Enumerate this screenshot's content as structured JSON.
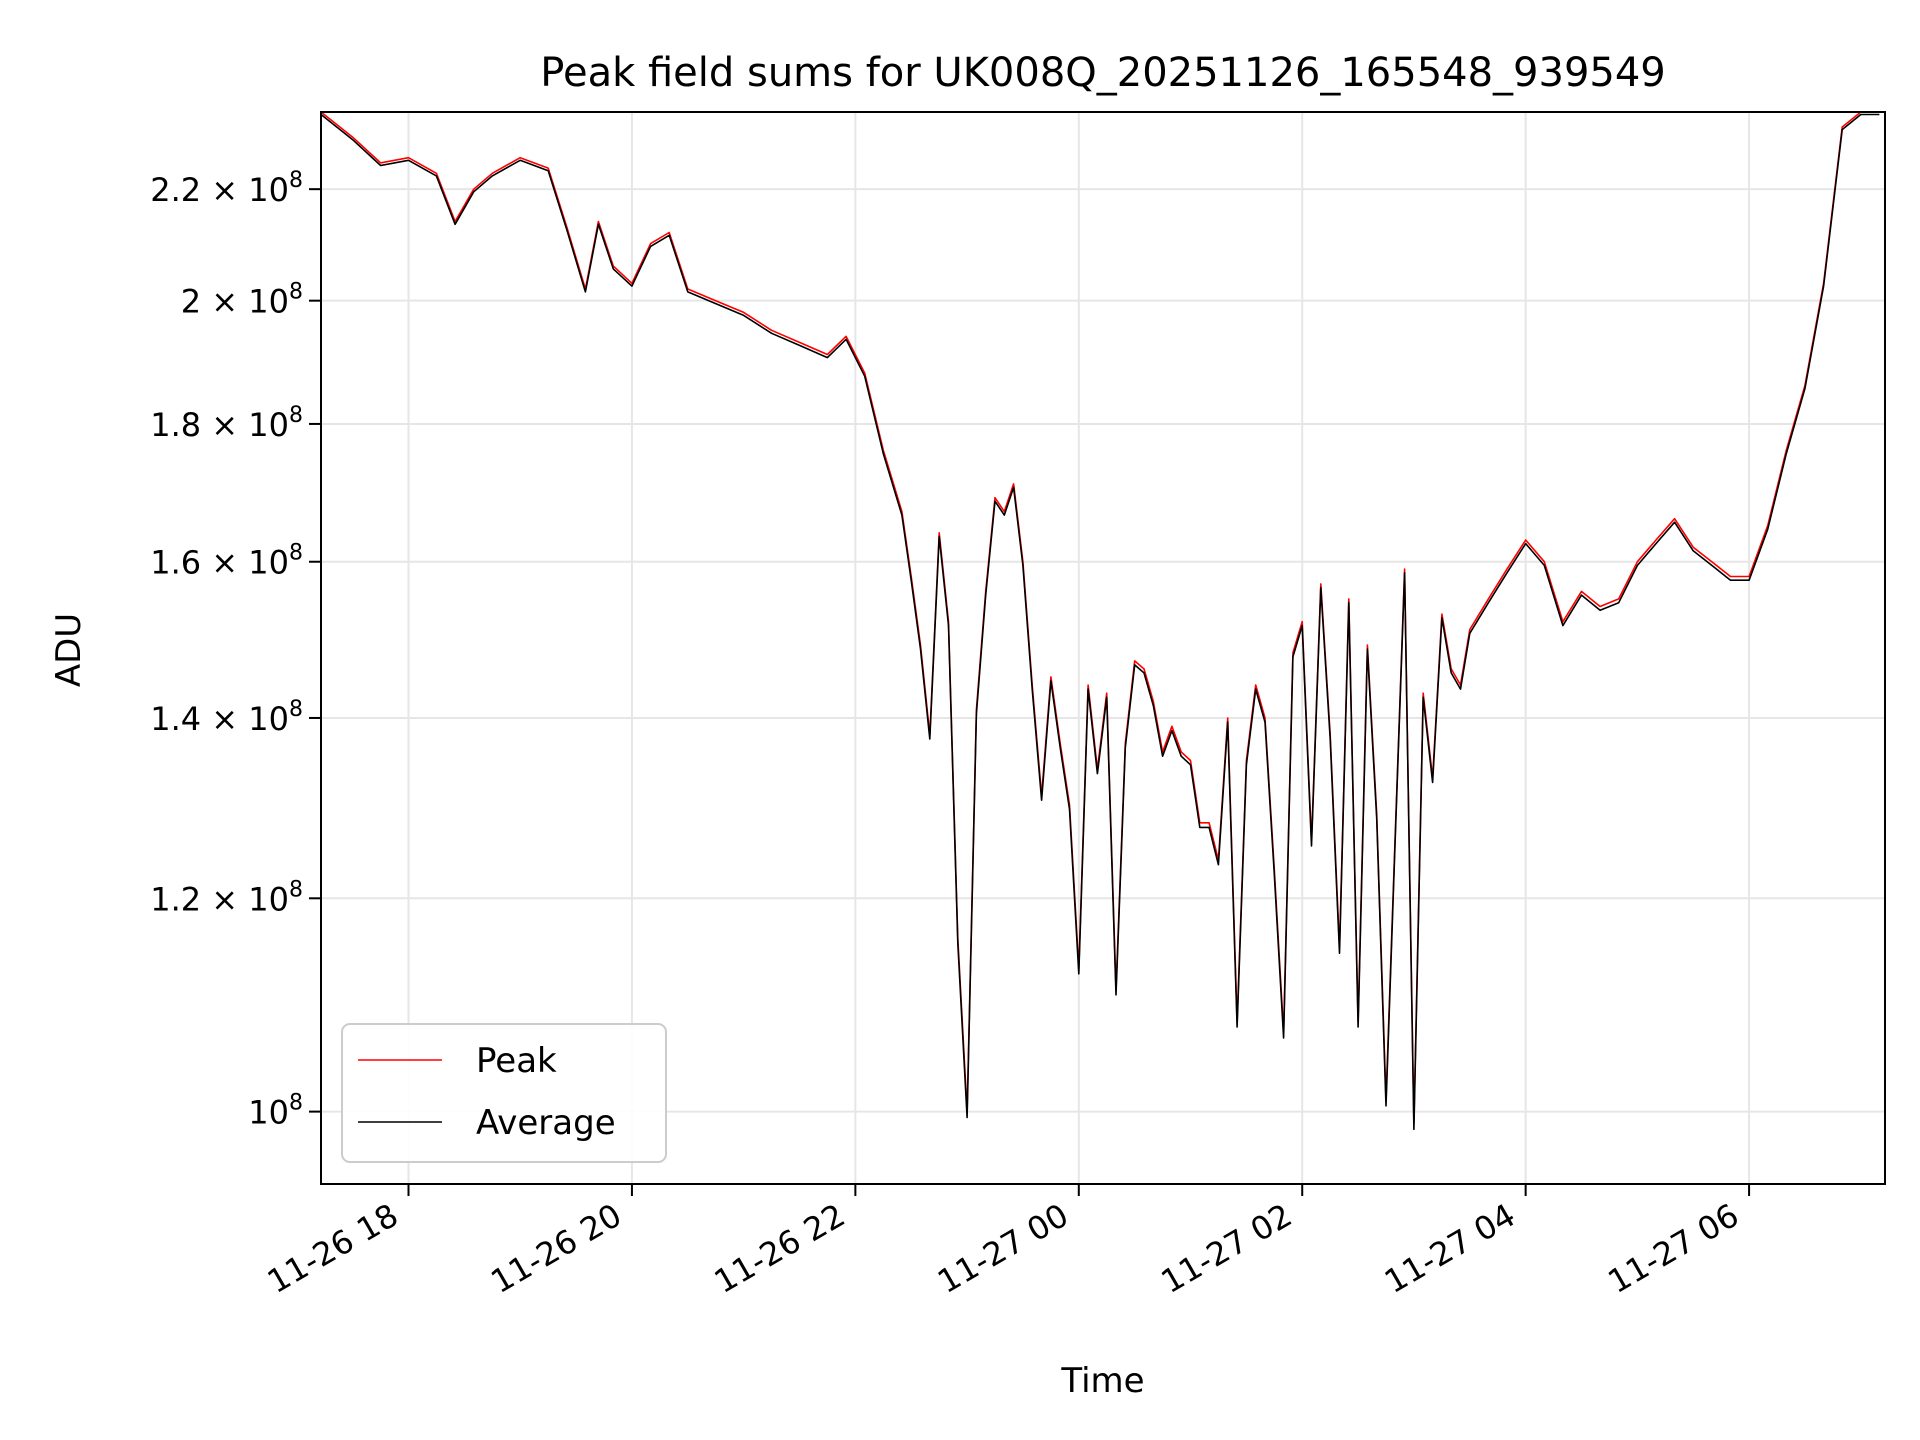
{
  "chart_data": {
    "type": "line",
    "title": "Peak field sums for UK008Q_20251126_165548_939549",
    "xlabel": "Time",
    "ylabel": "ADU",
    "y_scale": "log",
    "grid": true,
    "legend_position": "lower-left",
    "xlim": [
      "2025-11-26 17:13",
      "2025-11-27 07:13"
    ],
    "ylim": [
      94000000,
      235000000
    ],
    "x_ticks": [
      {
        "value": "2025-11-26 18:00",
        "label": "11-26 18"
      },
      {
        "value": "2025-11-26 20:00",
        "label": "11-26 20"
      },
      {
        "value": "2025-11-26 22:00",
        "label": "11-26 22"
      },
      {
        "value": "2025-11-27 00:00",
        "label": "11-27 00"
      },
      {
        "value": "2025-11-27 02:00",
        "label": "11-27 02"
      },
      {
        "value": "2025-11-27 04:00",
        "label": "11-27 04"
      },
      {
        "value": "2025-11-27 06:00",
        "label": "11-27 06"
      }
    ],
    "y_ticks": [
      {
        "value": 100000000,
        "mantissa": "",
        "exponent": "8"
      },
      {
        "value": 120000000,
        "mantissa": "1.2",
        "exponent": "8"
      },
      {
        "value": 140000000,
        "mantissa": "1.4",
        "exponent": "8"
      },
      {
        "value": 160000000,
        "mantissa": "1.6",
        "exponent": "8"
      },
      {
        "value": 180000000,
        "mantissa": "1.8",
        "exponent": "8"
      },
      {
        "value": 200000000,
        "mantissa": "2",
        "exponent": "8"
      },
      {
        "value": 220000000,
        "mantissa": "2.2",
        "exponent": "8"
      }
    ],
    "series": [
      {
        "name": "Peak",
        "color": "#ff0000",
        "x": [
          "2025-11-26 17:13",
          "2025-11-26 17:30",
          "2025-11-26 17:45",
          "2025-11-26 18:00",
          "2025-11-26 18:15",
          "2025-11-26 18:25",
          "2025-11-26 18:35",
          "2025-11-26 18:45",
          "2025-11-26 19:00",
          "2025-11-26 19:15",
          "2025-11-26 19:25",
          "2025-11-26 19:35",
          "2025-11-26 19:42",
          "2025-11-26 19:50",
          "2025-11-26 20:00",
          "2025-11-26 20:10",
          "2025-11-26 20:20",
          "2025-11-26 20:30",
          "2025-11-26 20:45",
          "2025-11-26 21:00",
          "2025-11-26 21:15",
          "2025-11-26 21:30",
          "2025-11-26 21:45",
          "2025-11-26 21:55",
          "2025-11-26 22:05",
          "2025-11-26 22:15",
          "2025-11-26 22:25",
          "2025-11-26 22:30",
          "2025-11-26 22:35",
          "2025-11-26 22:40",
          "2025-11-26 22:45",
          "2025-11-26 22:50",
          "2025-11-26 22:55",
          "2025-11-26 23:00",
          "2025-11-26 23:05",
          "2025-11-26 23:10",
          "2025-11-26 23:15",
          "2025-11-26 23:20",
          "2025-11-26 23:25",
          "2025-11-26 23:30",
          "2025-11-26 23:35",
          "2025-11-26 23:40",
          "2025-11-26 23:45",
          "2025-11-26 23:50",
          "2025-11-26 23:55",
          "2025-11-27 00:00",
          "2025-11-27 00:05",
          "2025-11-27 00:10",
          "2025-11-27 00:15",
          "2025-11-27 00:20",
          "2025-11-27 00:25",
          "2025-11-27 00:30",
          "2025-11-27 00:35",
          "2025-11-27 00:40",
          "2025-11-27 00:45",
          "2025-11-27 00:50",
          "2025-11-27 00:55",
          "2025-11-27 01:00",
          "2025-11-27 01:05",
          "2025-11-27 01:10",
          "2025-11-27 01:15",
          "2025-11-27 01:20",
          "2025-11-27 01:25",
          "2025-11-27 01:30",
          "2025-11-27 01:35",
          "2025-11-27 01:40",
          "2025-11-27 01:45",
          "2025-11-27 01:50",
          "2025-11-27 01:55",
          "2025-11-27 02:00",
          "2025-11-27 02:05",
          "2025-11-27 02:10",
          "2025-11-27 02:15",
          "2025-11-27 02:20",
          "2025-11-27 02:25",
          "2025-11-27 02:30",
          "2025-11-27 02:35",
          "2025-11-27 02:40",
          "2025-11-27 02:45",
          "2025-11-27 02:50",
          "2025-11-27 02:55",
          "2025-11-27 03:00",
          "2025-11-27 03:05",
          "2025-11-27 03:10",
          "2025-11-27 03:15",
          "2025-11-27 03:20",
          "2025-11-27 03:25",
          "2025-11-27 03:30",
          "2025-11-27 03:40",
          "2025-11-27 03:50",
          "2025-11-27 04:00",
          "2025-11-27 04:10",
          "2025-11-27 04:20",
          "2025-11-27 04:30",
          "2025-11-27 04:40",
          "2025-11-27 04:50",
          "2025-11-27 05:00",
          "2025-11-27 05:10",
          "2025-11-27 05:20",
          "2025-11-27 05:30",
          "2025-11-27 05:40",
          "2025-11-27 05:50",
          "2025-11-27 06:00",
          "2025-11-27 06:10",
          "2025-11-27 06:20",
          "2025-11-27 06:30",
          "2025-11-27 06:40",
          "2025-11-27 06:50",
          "2025-11-27 07:00",
          "2025-11-27 07:10"
        ],
        "values": [
          235000000,
          230000000,
          225000000,
          226000000,
          223000000,
          214000000,
          220000000,
          223000000,
          226000000,
          224000000,
          213000000,
          202000000,
          214000000,
          206000000,
          203000000,
          210000000,
          212000000,
          202000000,
          200000000,
          198000000,
          195000000,
          193000000,
          191000000,
          194000000,
          188000000,
          176000000,
          167000000,
          158000000,
          149000000,
          138000000,
          164000000,
          152000000,
          116000000,
          100000000,
          141000000,
          156000000,
          169000000,
          167000000,
          171000000,
          160000000,
          144000000,
          131000000,
          145000000,
          137000000,
          130000000,
          113000000,
          144000000,
          134000000,
          143000000,
          111000000,
          137000000,
          147000000,
          146000000,
          142000000,
          136000000,
          139000000,
          136000000,
          135000000,
          128000000,
          128000000,
          124000000,
          140000000,
          108000000,
          135000000,
          144000000,
          140000000,
          123000000,
          107000000,
          148000000,
          152000000,
          126000000,
          157000000,
          138000000,
          115000000,
          155000000,
          108000000,
          149000000,
          129000000,
          101000000,
          127000000,
          159000000,
          99000000,
          143000000,
          133000000,
          153000000,
          146000000,
          144000000,
          151000000,
          155000000,
          159000000,
          163000000,
          160000000,
          152000000,
          156000000,
          154000000,
          155000000,
          160000000,
          163000000,
          166000000,
          162000000,
          160000000,
          158000000,
          158000000,
          165000000,
          176000000,
          186000000,
          203000000,
          232000000,
          235000000,
          235000000
        ]
      },
      {
        "name": "Average",
        "color": "#000000",
        "x": [
          "2025-11-26 17:13",
          "2025-11-26 17:30",
          "2025-11-26 17:45",
          "2025-11-26 18:00",
          "2025-11-26 18:15",
          "2025-11-26 18:25",
          "2025-11-26 18:35",
          "2025-11-26 18:45",
          "2025-11-26 19:00",
          "2025-11-26 19:15",
          "2025-11-26 19:25",
          "2025-11-26 19:35",
          "2025-11-26 19:42",
          "2025-11-26 19:50",
          "2025-11-26 20:00",
          "2025-11-26 20:10",
          "2025-11-26 20:20",
          "2025-11-26 20:30",
          "2025-11-26 20:45",
          "2025-11-26 21:00",
          "2025-11-26 21:15",
          "2025-11-26 21:30",
          "2025-11-26 21:45",
          "2025-11-26 21:55",
          "2025-11-26 22:05",
          "2025-11-26 22:15",
          "2025-11-26 22:25",
          "2025-11-26 22:30",
          "2025-11-26 22:35",
          "2025-11-26 22:40",
          "2025-11-26 22:45",
          "2025-11-26 22:50",
          "2025-11-26 22:55",
          "2025-11-26 23:00",
          "2025-11-26 23:05",
          "2025-11-26 23:10",
          "2025-11-26 23:15",
          "2025-11-26 23:20",
          "2025-11-26 23:25",
          "2025-11-26 23:30",
          "2025-11-26 23:35",
          "2025-11-26 23:40",
          "2025-11-26 23:45",
          "2025-11-26 23:50",
          "2025-11-26 23:55",
          "2025-11-27 00:00",
          "2025-11-27 00:05",
          "2025-11-27 00:10",
          "2025-11-27 00:15",
          "2025-11-27 00:20",
          "2025-11-27 00:25",
          "2025-11-27 00:30",
          "2025-11-27 00:35",
          "2025-11-27 00:40",
          "2025-11-27 00:45",
          "2025-11-27 00:50",
          "2025-11-27 00:55",
          "2025-11-27 01:00",
          "2025-11-27 01:05",
          "2025-11-27 01:10",
          "2025-11-27 01:15",
          "2025-11-27 01:20",
          "2025-11-27 01:25",
          "2025-11-27 01:30",
          "2025-11-27 01:35",
          "2025-11-27 01:40",
          "2025-11-27 01:45",
          "2025-11-27 01:50",
          "2025-11-27 01:55",
          "2025-11-27 02:00",
          "2025-11-27 02:05",
          "2025-11-27 02:10",
          "2025-11-27 02:15",
          "2025-11-27 02:20",
          "2025-11-27 02:25",
          "2025-11-27 02:30",
          "2025-11-27 02:35",
          "2025-11-27 02:40",
          "2025-11-27 02:45",
          "2025-11-27 02:50",
          "2025-11-27 02:55",
          "2025-11-27 03:00",
          "2025-11-27 03:05",
          "2025-11-27 03:10",
          "2025-11-27 03:15",
          "2025-11-27 03:20",
          "2025-11-27 03:25",
          "2025-11-27 03:30",
          "2025-11-27 03:40",
          "2025-11-27 03:50",
          "2025-11-27 04:00",
          "2025-11-27 04:10",
          "2025-11-27 04:20",
          "2025-11-27 04:30",
          "2025-11-27 04:40",
          "2025-11-27 04:50",
          "2025-11-27 05:00",
          "2025-11-27 05:10",
          "2025-11-27 05:20",
          "2025-11-27 05:30",
          "2025-11-27 05:40",
          "2025-11-27 05:50",
          "2025-11-27 06:00",
          "2025-11-27 06:10",
          "2025-11-27 06:20",
          "2025-11-27 06:30",
          "2025-11-27 06:40",
          "2025-11-27 06:50",
          "2025-11-27 07:00",
          "2025-11-27 07:10"
        ],
        "values": [
          234500000,
          229500000,
          224500000,
          225500000,
          222500000,
          213500000,
          219500000,
          222500000,
          225500000,
          223500000,
          212500000,
          201500000,
          213500000,
          205500000,
          202500000,
          209500000,
          211500000,
          201500000,
          199500000,
          197500000,
          194500000,
          192500000,
          190500000,
          193500000,
          187500000,
          175500000,
          166500000,
          157500000,
          148500000,
          137500000,
          163500000,
          151500000,
          115500000,
          99500000,
          140500000,
          155500000,
          168500000,
          166500000,
          170500000,
          159500000,
          143500000,
          130500000,
          144500000,
          136500000,
          129500000,
          112500000,
          143500000,
          133500000,
          142500000,
          110500000,
          136500000,
          146500000,
          145500000,
          141500000,
          135500000,
          138500000,
          135500000,
          134500000,
          127500000,
          127500000,
          123500000,
          139500000,
          107500000,
          134500000,
          143500000,
          139500000,
          122500000,
          106500000,
          147500000,
          151500000,
          125500000,
          156500000,
          137500000,
          114500000,
          154500000,
          107500000,
          148500000,
          128500000,
          100500000,
          126500000,
          158500000,
          98500000,
          142500000,
          132500000,
          152500000,
          145500000,
          143500000,
          150500000,
          154500000,
          158500000,
          162500000,
          159500000,
          151500000,
          155500000,
          153500000,
          154500000,
          159500000,
          162500000,
          165500000,
          161500000,
          159500000,
          157500000,
          157500000,
          164500000,
          175500000,
          185500000,
          202500000,
          231500000,
          234500000,
          234500000
        ]
      }
    ]
  }
}
